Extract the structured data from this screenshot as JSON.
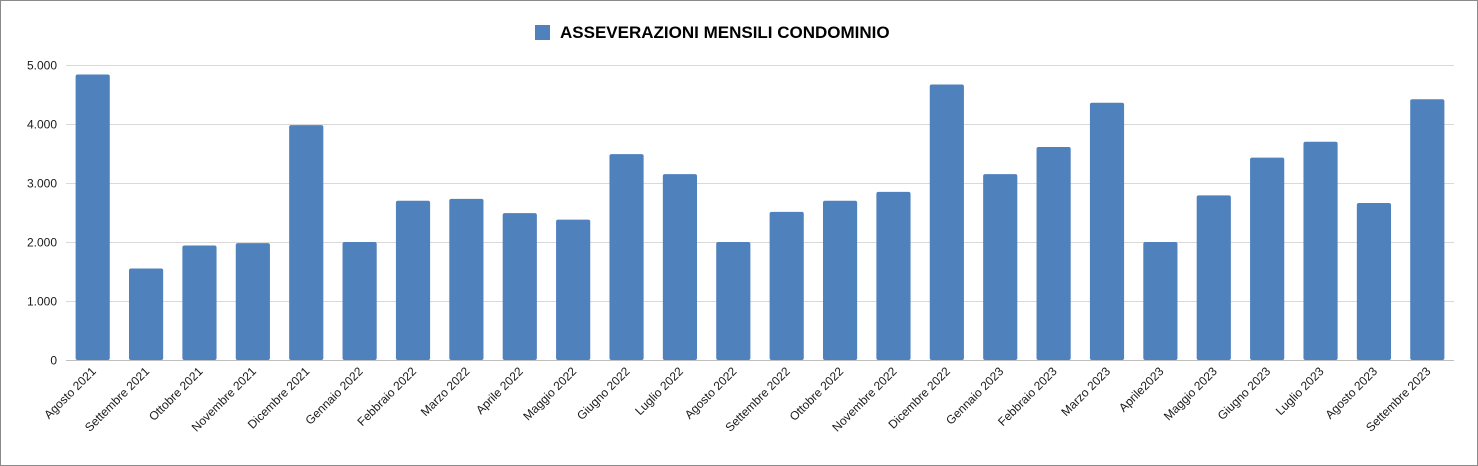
{
  "chart_data": {
    "type": "bar",
    "legend": {
      "label": "ASSEVERAZIONI MENSILI CONDOMINIO",
      "position": "top-center"
    },
    "color": "#4f81bd",
    "grid": true,
    "ylim": [
      0,
      5000
    ],
    "yticks": [
      0,
      1000,
      2000,
      3000,
      4000,
      5000
    ],
    "ytick_labels": [
      "0",
      "1.000",
      "2.000",
      "3.000",
      "4.000",
      "5.000"
    ],
    "categories": [
      "Agosto 2021",
      "Settembre 2021",
      "Ottobre 2021",
      "Novembre 2021",
      "Dicembre 2021",
      "Gennaio 2022",
      "Febbraio 2022",
      "Marzo 2022",
      "Aprile 2022",
      "Maggio 2022",
      "Giugno 2022",
      "Luglio 2022",
      "Agosto 2022",
      "Settembre 2022",
      "Ottobre 2022",
      "Novembre 2022",
      "Dicembre 2022",
      "Gennaio 2023",
      "Febbraio 2023",
      "Marzo 2023",
      "Aprile2023",
      "Maggio 2023",
      "Giugno 2023",
      "Luglio 2023",
      "Agosto 2023",
      "Settembre 2023"
    ],
    "values": [
      4840,
      1550,
      1940,
      1980,
      3980,
      2000,
      2700,
      2730,
      2490,
      2380,
      3490,
      3150,
      2000,
      2510,
      2700,
      2850,
      4670,
      3150,
      3610,
      4360,
      2000,
      2790,
      3430,
      3700,
      2660,
      4420
    ]
  }
}
